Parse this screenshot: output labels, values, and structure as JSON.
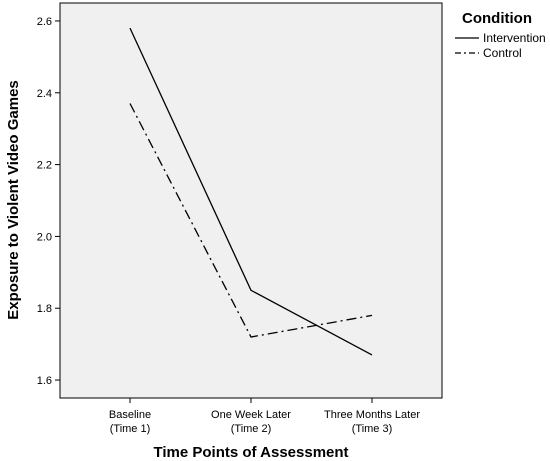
{
  "chart_data": {
    "type": "line",
    "categories": [
      [
        "Baseline",
        "(Time 1)"
      ],
      [
        "One Week Later",
        "(Time 2)"
      ],
      [
        "Three Months Later",
        "(Time 3)"
      ]
    ],
    "series": [
      {
        "name": "Intervention",
        "values": [
          2.58,
          1.85,
          1.67
        ],
        "line_style": "solid",
        "color": "#000000"
      },
      {
        "name": "Control",
        "values": [
          2.37,
          1.72,
          1.78
        ],
        "line_style": "dash-dot",
        "color": "#000000"
      }
    ],
    "xlabel": "Time Points of Assessment",
    "ylabel": "Exposure to Violent Video Games",
    "ylim": [
      1.55,
      2.65
    ],
    "yticks": [
      "1.6",
      "1.8",
      "2.0",
      "2.2",
      "2.4",
      "2.6"
    ],
    "legend_title": "Condition",
    "legend_position": "outside-top-right",
    "grid": false,
    "plot_background": "#f0f0f0"
  }
}
